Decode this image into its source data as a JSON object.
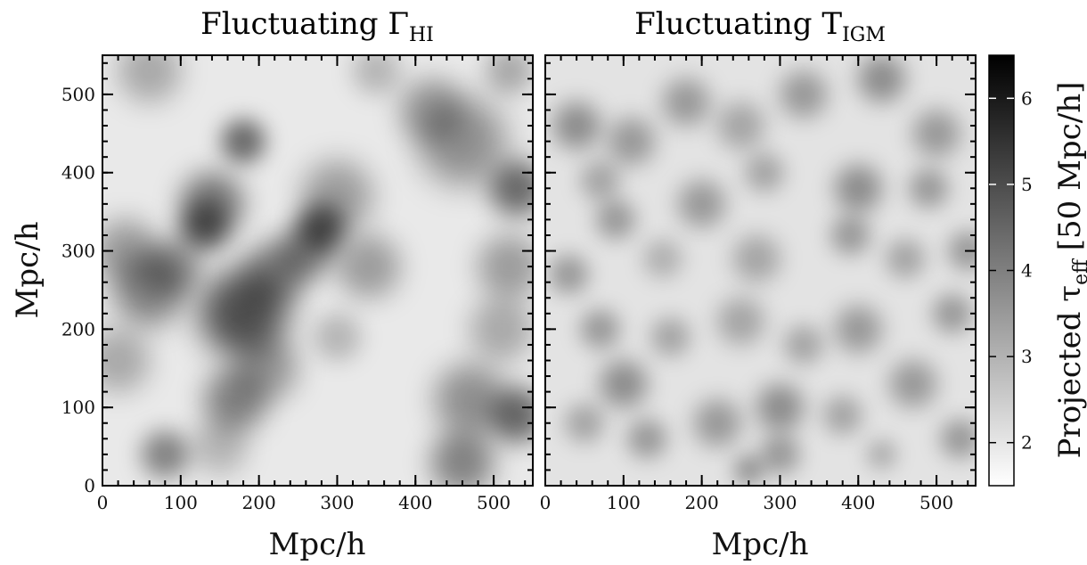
{
  "chart_data": [
    {
      "type": "heatmap",
      "title_base": "Fluctuating Γ",
      "title_sub": "HI",
      "xlabel": "Mpc/h",
      "ylabel": "Mpc/h",
      "xlim": [
        0,
        550
      ],
      "ylim": [
        0,
        550
      ],
      "x_ticks": [
        0,
        100,
        200,
        300,
        400,
        500
      ],
      "y_ticks": [
        0,
        100,
        200,
        300,
        400,
        500
      ],
      "minor_tick_step": 20,
      "grid": false,
      "dark_regions": [
        {
          "x": 180,
          "y": 440,
          "r": 28,
          "w": 1.0
        },
        {
          "x": 140,
          "y": 360,
          "r": 40,
          "w": 0.9
        },
        {
          "x": 130,
          "y": 330,
          "r": 30,
          "w": 1.0
        },
        {
          "x": 280,
          "y": 330,
          "r": 30,
          "w": 1.1
        },
        {
          "x": 300,
          "y": 370,
          "r": 45,
          "w": 0.6
        },
        {
          "x": 180,
          "y": 220,
          "r": 55,
          "w": 1.2
        },
        {
          "x": 220,
          "y": 270,
          "r": 40,
          "w": 0.8
        },
        {
          "x": 260,
          "y": 300,
          "r": 35,
          "w": 0.8
        },
        {
          "x": 340,
          "y": 280,
          "r": 40,
          "w": 0.6
        },
        {
          "x": 60,
          "y": 250,
          "r": 45,
          "w": 0.8
        },
        {
          "x": 30,
          "y": 300,
          "r": 40,
          "w": 0.6
        },
        {
          "x": 90,
          "y": 280,
          "r": 35,
          "w": 0.7
        },
        {
          "x": 460,
          "y": 440,
          "r": 55,
          "w": 0.7
        },
        {
          "x": 420,
          "y": 480,
          "r": 40,
          "w": 0.6
        },
        {
          "x": 530,
          "y": 380,
          "r": 35,
          "w": 1.0
        },
        {
          "x": 520,
          "y": 280,
          "r": 40,
          "w": 0.6
        },
        {
          "x": 510,
          "y": 200,
          "r": 40,
          "w": 0.5
        },
        {
          "x": 530,
          "y": 90,
          "r": 35,
          "w": 1.0
        },
        {
          "x": 470,
          "y": 110,
          "r": 45,
          "w": 0.7
        },
        {
          "x": 460,
          "y": 30,
          "r": 40,
          "w": 0.8
        },
        {
          "x": 170,
          "y": 110,
          "r": 40,
          "w": 0.8
        },
        {
          "x": 210,
          "y": 150,
          "r": 40,
          "w": 0.6
        },
        {
          "x": 80,
          "y": 40,
          "r": 30,
          "w": 0.8
        },
        {
          "x": 20,
          "y": 160,
          "r": 40,
          "w": 0.5
        },
        {
          "x": 60,
          "y": 530,
          "r": 40,
          "w": 0.5
        },
        {
          "x": 350,
          "y": 530,
          "r": 30,
          "w": 0.4
        },
        {
          "x": 520,
          "y": 530,
          "r": 30,
          "w": 0.5
        },
        {
          "x": 150,
          "y": 50,
          "r": 35,
          "w": 0.4
        },
        {
          "x": 300,
          "y": 190,
          "r": 30,
          "w": 0.4
        }
      ]
    },
    {
      "type": "heatmap",
      "title_base": "Fluctuating T",
      "title_sub": "IGM",
      "xlabel": "Mpc/h",
      "ylabel": "",
      "xlim": [
        0,
        550
      ],
      "ylim": [
        0,
        550
      ],
      "x_ticks": [
        0,
        100,
        200,
        300,
        400,
        500
      ],
      "y_ticks": [
        0,
        100,
        200,
        300,
        400,
        500
      ],
      "minor_tick_step": 20,
      "grid": false,
      "dark_regions": [
        {
          "x": 40,
          "y": 460,
          "r": 30,
          "w": 0.7
        },
        {
          "x": 110,
          "y": 440,
          "r": 30,
          "w": 0.6
        },
        {
          "x": 180,
          "y": 490,
          "r": 30,
          "w": 0.6
        },
        {
          "x": 250,
          "y": 460,
          "r": 30,
          "w": 0.5
        },
        {
          "x": 330,
          "y": 500,
          "r": 30,
          "w": 0.6
        },
        {
          "x": 430,
          "y": 520,
          "r": 30,
          "w": 0.7
        },
        {
          "x": 500,
          "y": 450,
          "r": 30,
          "w": 0.6
        },
        {
          "x": 70,
          "y": 390,
          "r": 25,
          "w": 0.5
        },
        {
          "x": 90,
          "y": 340,
          "r": 25,
          "w": 0.6
        },
        {
          "x": 200,
          "y": 360,
          "r": 30,
          "w": 0.6
        },
        {
          "x": 280,
          "y": 400,
          "r": 25,
          "w": 0.5
        },
        {
          "x": 400,
          "y": 380,
          "r": 30,
          "w": 0.7
        },
        {
          "x": 490,
          "y": 380,
          "r": 25,
          "w": 0.6
        },
        {
          "x": 30,
          "y": 270,
          "r": 25,
          "w": 0.6
        },
        {
          "x": 150,
          "y": 290,
          "r": 25,
          "w": 0.4
        },
        {
          "x": 270,
          "y": 290,
          "r": 30,
          "w": 0.5
        },
        {
          "x": 390,
          "y": 320,
          "r": 25,
          "w": 0.6
        },
        {
          "x": 460,
          "y": 290,
          "r": 25,
          "w": 0.5
        },
        {
          "x": 540,
          "y": 300,
          "r": 25,
          "w": 0.6
        },
        {
          "x": 70,
          "y": 200,
          "r": 25,
          "w": 0.6
        },
        {
          "x": 100,
          "y": 130,
          "r": 30,
          "w": 0.7
        },
        {
          "x": 160,
          "y": 190,
          "r": 25,
          "w": 0.5
        },
        {
          "x": 250,
          "y": 210,
          "r": 30,
          "w": 0.5
        },
        {
          "x": 330,
          "y": 180,
          "r": 25,
          "w": 0.5
        },
        {
          "x": 400,
          "y": 200,
          "r": 30,
          "w": 0.6
        },
        {
          "x": 520,
          "y": 220,
          "r": 25,
          "w": 0.6
        },
        {
          "x": 50,
          "y": 80,
          "r": 25,
          "w": 0.5
        },
        {
          "x": 130,
          "y": 60,
          "r": 25,
          "w": 0.6
        },
        {
          "x": 220,
          "y": 80,
          "r": 30,
          "w": 0.6
        },
        {
          "x": 300,
          "y": 100,
          "r": 30,
          "w": 0.7
        },
        {
          "x": 300,
          "y": 40,
          "r": 25,
          "w": 0.6
        },
        {
          "x": 380,
          "y": 90,
          "r": 25,
          "w": 0.5
        },
        {
          "x": 470,
          "y": 130,
          "r": 30,
          "w": 0.6
        },
        {
          "x": 530,
          "y": 60,
          "r": 25,
          "w": 0.6
        },
        {
          "x": 260,
          "y": 20,
          "r": 20,
          "w": 0.6
        },
        {
          "x": 430,
          "y": 40,
          "r": 20,
          "w": 0.4
        }
      ]
    }
  ],
  "colorbar": {
    "label_base": "Projected τ",
    "label_sub": "eff",
    "label_suffix": "[50 Mpc/h]",
    "range": [
      1.5,
      6.5
    ],
    "ticks": [
      2,
      3,
      4,
      5,
      6
    ],
    "colormap": "gray_r",
    "low_color": "#ffffff",
    "high_color": "#000000"
  }
}
